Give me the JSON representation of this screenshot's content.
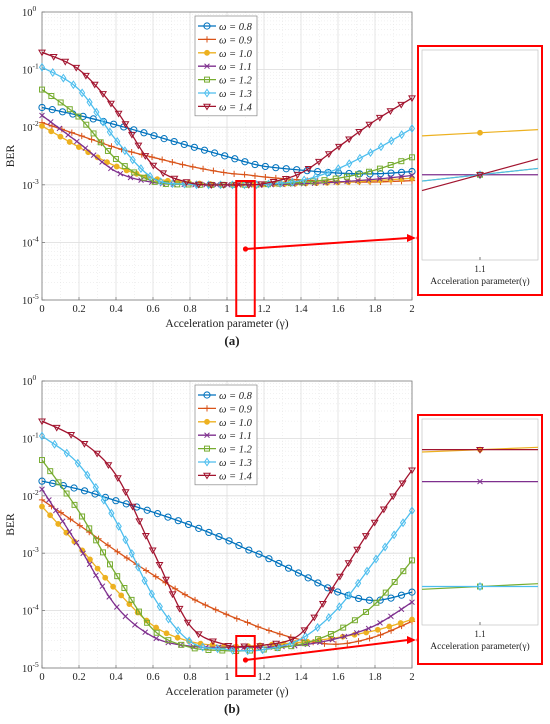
{
  "figure": {
    "panels": [
      {
        "label": "(a)",
        "ylabel": "BER",
        "xlabel": "Acceleration parameter (γ)",
        "x_ticks": [
          "0",
          "0.2",
          "0.4",
          "0.6",
          "0.8",
          "1",
          "1.2",
          "1.4",
          "1.6",
          "1.8",
          "2"
        ],
        "y_ticks": [
          {
            "base": "10",
            "exp": "0"
          },
          {
            "base": "10",
            "exp": "-1"
          },
          {
            "base": "10",
            "exp": "-2"
          },
          {
            "base": "10",
            "exp": "-3"
          },
          {
            "base": "10",
            "exp": "-4"
          },
          {
            "base": "10",
            "exp": "-5"
          }
        ],
        "inset_tick": "1.1",
        "inset_xlabel": "Acceleration parameter(γ)"
      },
      {
        "label": "(b)",
        "ylabel": "BER",
        "xlabel": "Acceleration parameter (γ)",
        "x_ticks": [
          "0",
          "0.2",
          "0.4",
          "0.6",
          "0.8",
          "1",
          "1.2",
          "1.4",
          "1.6",
          "1.8",
          "2"
        ],
        "y_ticks": [
          {
            "base": "10",
            "exp": "0"
          },
          {
            "base": "10",
            "exp": "-1"
          },
          {
            "base": "10",
            "exp": "-2"
          },
          {
            "base": "10",
            "exp": "-3"
          },
          {
            "base": "10",
            "exp": "-4"
          },
          {
            "base": "10",
            "exp": "-5"
          }
        ],
        "inset_tick": "1.1",
        "inset_xlabel": "Acceleration parameter(γ)"
      }
    ],
    "legend_symbol": "ω",
    "colors": {
      "highlight": "#ff0000",
      "grid": "#dcdcdc",
      "axis": "#7a7a7a"
    }
  },
  "chart_data": [
    {
      "type": "line",
      "panel": "(a)",
      "xlabel": "Acceleration parameter (γ)",
      "ylabel": "BER",
      "xlim": [
        0,
        2
      ],
      "ylim": [
        1e-05,
        1
      ],
      "yscale": "log",
      "grid": true,
      "legend_position": "top-center",
      "x": [
        0,
        0.2,
        0.4,
        0.6,
        0.8,
        1.0,
        1.1,
        1.2,
        1.4,
        1.6,
        1.8,
        2.0
      ],
      "series": [
        {
          "name": "ω = 0.8",
          "color": "#0072bd",
          "marker": "circle",
          "values": [
            0.022,
            0.016,
            0.011,
            0.0072,
            0.0047,
            0.0031,
            0.0025,
            0.0021,
            0.0018,
            0.0016,
            0.00155,
            0.0017
          ]
        },
        {
          "name": "ω = 0.9",
          "color": "#d95319",
          "marker": "plus",
          "values": [
            0.012,
            0.0073,
            0.0044,
            0.003,
            0.0021,
            0.0016,
            0.0015,
            0.00137,
            0.00121,
            0.00113,
            0.00112,
            0.00118
          ]
        },
        {
          "name": "ω = 1.0",
          "color": "#edb120",
          "marker": "dot",
          "values": [
            0.0105,
            0.0045,
            0.0021,
            0.0013,
            0.00108,
            0.00101,
            0.00101,
            0.00102,
            0.00105,
            0.0011,
            0.00118,
            0.0013
          ]
        },
        {
          "name": "ω = 1.1",
          "color": "#7e2f8e",
          "marker": "x",
          "values": [
            0.016,
            0.0053,
            0.0017,
            0.0011,
            0.00101,
            0.001,
            0.001,
            0.001,
            0.00104,
            0.00112,
            0.00125,
            0.00145
          ]
        },
        {
          "name": "ω = 1.2",
          "color": "#77ac30",
          "marker": "square",
          "values": [
            0.045,
            0.015,
            0.0028,
            0.00115,
            0.00101,
            0.001,
            0.001,
            0.00102,
            0.0011,
            0.0013,
            0.0018,
            0.003
          ]
        },
        {
          "name": "ω = 1.3",
          "color": "#4dbeee",
          "marker": "diamond",
          "values": [
            0.11,
            0.045,
            0.006,
            0.0013,
            0.00102,
            0.001,
            0.001,
            0.00102,
            0.00118,
            0.0019,
            0.004,
            0.0095
          ]
        },
        {
          "name": "ω = 1.4",
          "color": "#a2142f",
          "marker": "triangle-down",
          "values": [
            0.2,
            0.1,
            0.02,
            0.0022,
            0.00108,
            0.001,
            0.001,
            0.00105,
            0.0016,
            0.0045,
            0.013,
            0.032
          ]
        }
      ]
    },
    {
      "type": "line",
      "panel": "(b)",
      "xlabel": "Acceleration parameter (γ)",
      "ylabel": "BER",
      "xlim": [
        0,
        2
      ],
      "ylim": [
        1e-05,
        1
      ],
      "yscale": "log",
      "grid": true,
      "legend_position": "top-center",
      "x": [
        0,
        0.2,
        0.4,
        0.6,
        0.8,
        1.0,
        1.1,
        1.2,
        1.4,
        1.6,
        1.8,
        2.0
      ],
      "series": [
        {
          "name": "ω = 0.8",
          "color": "#0072bd",
          "marker": "circle",
          "values": [
            0.018,
            0.013,
            0.0082,
            0.0052,
            0.0031,
            0.0017,
            0.0012,
            0.00088,
            0.00043,
            0.00021,
            0.00015,
            0.00021
          ]
        },
        {
          "name": "ω = 0.9",
          "color": "#d95319",
          "marker": "plus",
          "values": [
            0.0085,
            0.0031,
            0.0011,
            0.00042,
            0.00017,
            8.5e-05,
            6.4e-05,
            4.8e-05,
            3.1e-05,
            2.6e-05,
            3.5e-05,
            6.5e-05
          ]
        },
        {
          "name": "ω = 1.0",
          "color": "#edb120",
          "marker": "dot",
          "values": [
            0.0065,
            0.0013,
            0.00023,
            5.5e-05,
            2.9e-05,
            2.4e-05,
            2.4e-05,
            2.5e-05,
            2.8e-05,
            3.4e-05,
            4.5e-05,
            7e-05
          ]
        },
        {
          "name": "ω = 1.1",
          "color": "#7e2f8e",
          "marker": "x",
          "values": [
            0.013,
            0.0013,
            0.00012,
            3.5e-05,
            2.4e-05,
            2.3e-05,
            2.3e-05,
            2.3e-05,
            2.5e-05,
            3.3e-05,
            5.5e-05,
            0.00014
          ]
        },
        {
          "name": "ω = 1.2",
          "color": "#77ac30",
          "marker": "square",
          "values": [
            0.042,
            0.0053,
            0.00043,
            4.7e-05,
            2.3e-05,
            2e-05,
            2e-05,
            2.1e-05,
            2.6e-05,
            4.5e-05,
            0.00013,
            0.00075
          ]
        },
        {
          "name": "ω = 1.3",
          "color": "#4dbeee",
          "marker": "diamond",
          "values": [
            0.11,
            0.035,
            0.0036,
            0.00018,
            2.9e-05,
            2.1e-05,
            2e-05,
            2.1e-05,
            3.2e-05,
            0.00011,
            0.00075,
            0.0055
          ]
        },
        {
          "name": "ω = 1.4",
          "color": "#a2142f",
          "marker": "triangle-down",
          "values": [
            0.2,
            0.095,
            0.023,
            0.0011,
            5.5e-05,
            2.5e-05,
            2.4e-05,
            2.5e-05,
            4e-05,
            0.00035,
            0.0035,
            0.028
          ]
        }
      ]
    }
  ]
}
